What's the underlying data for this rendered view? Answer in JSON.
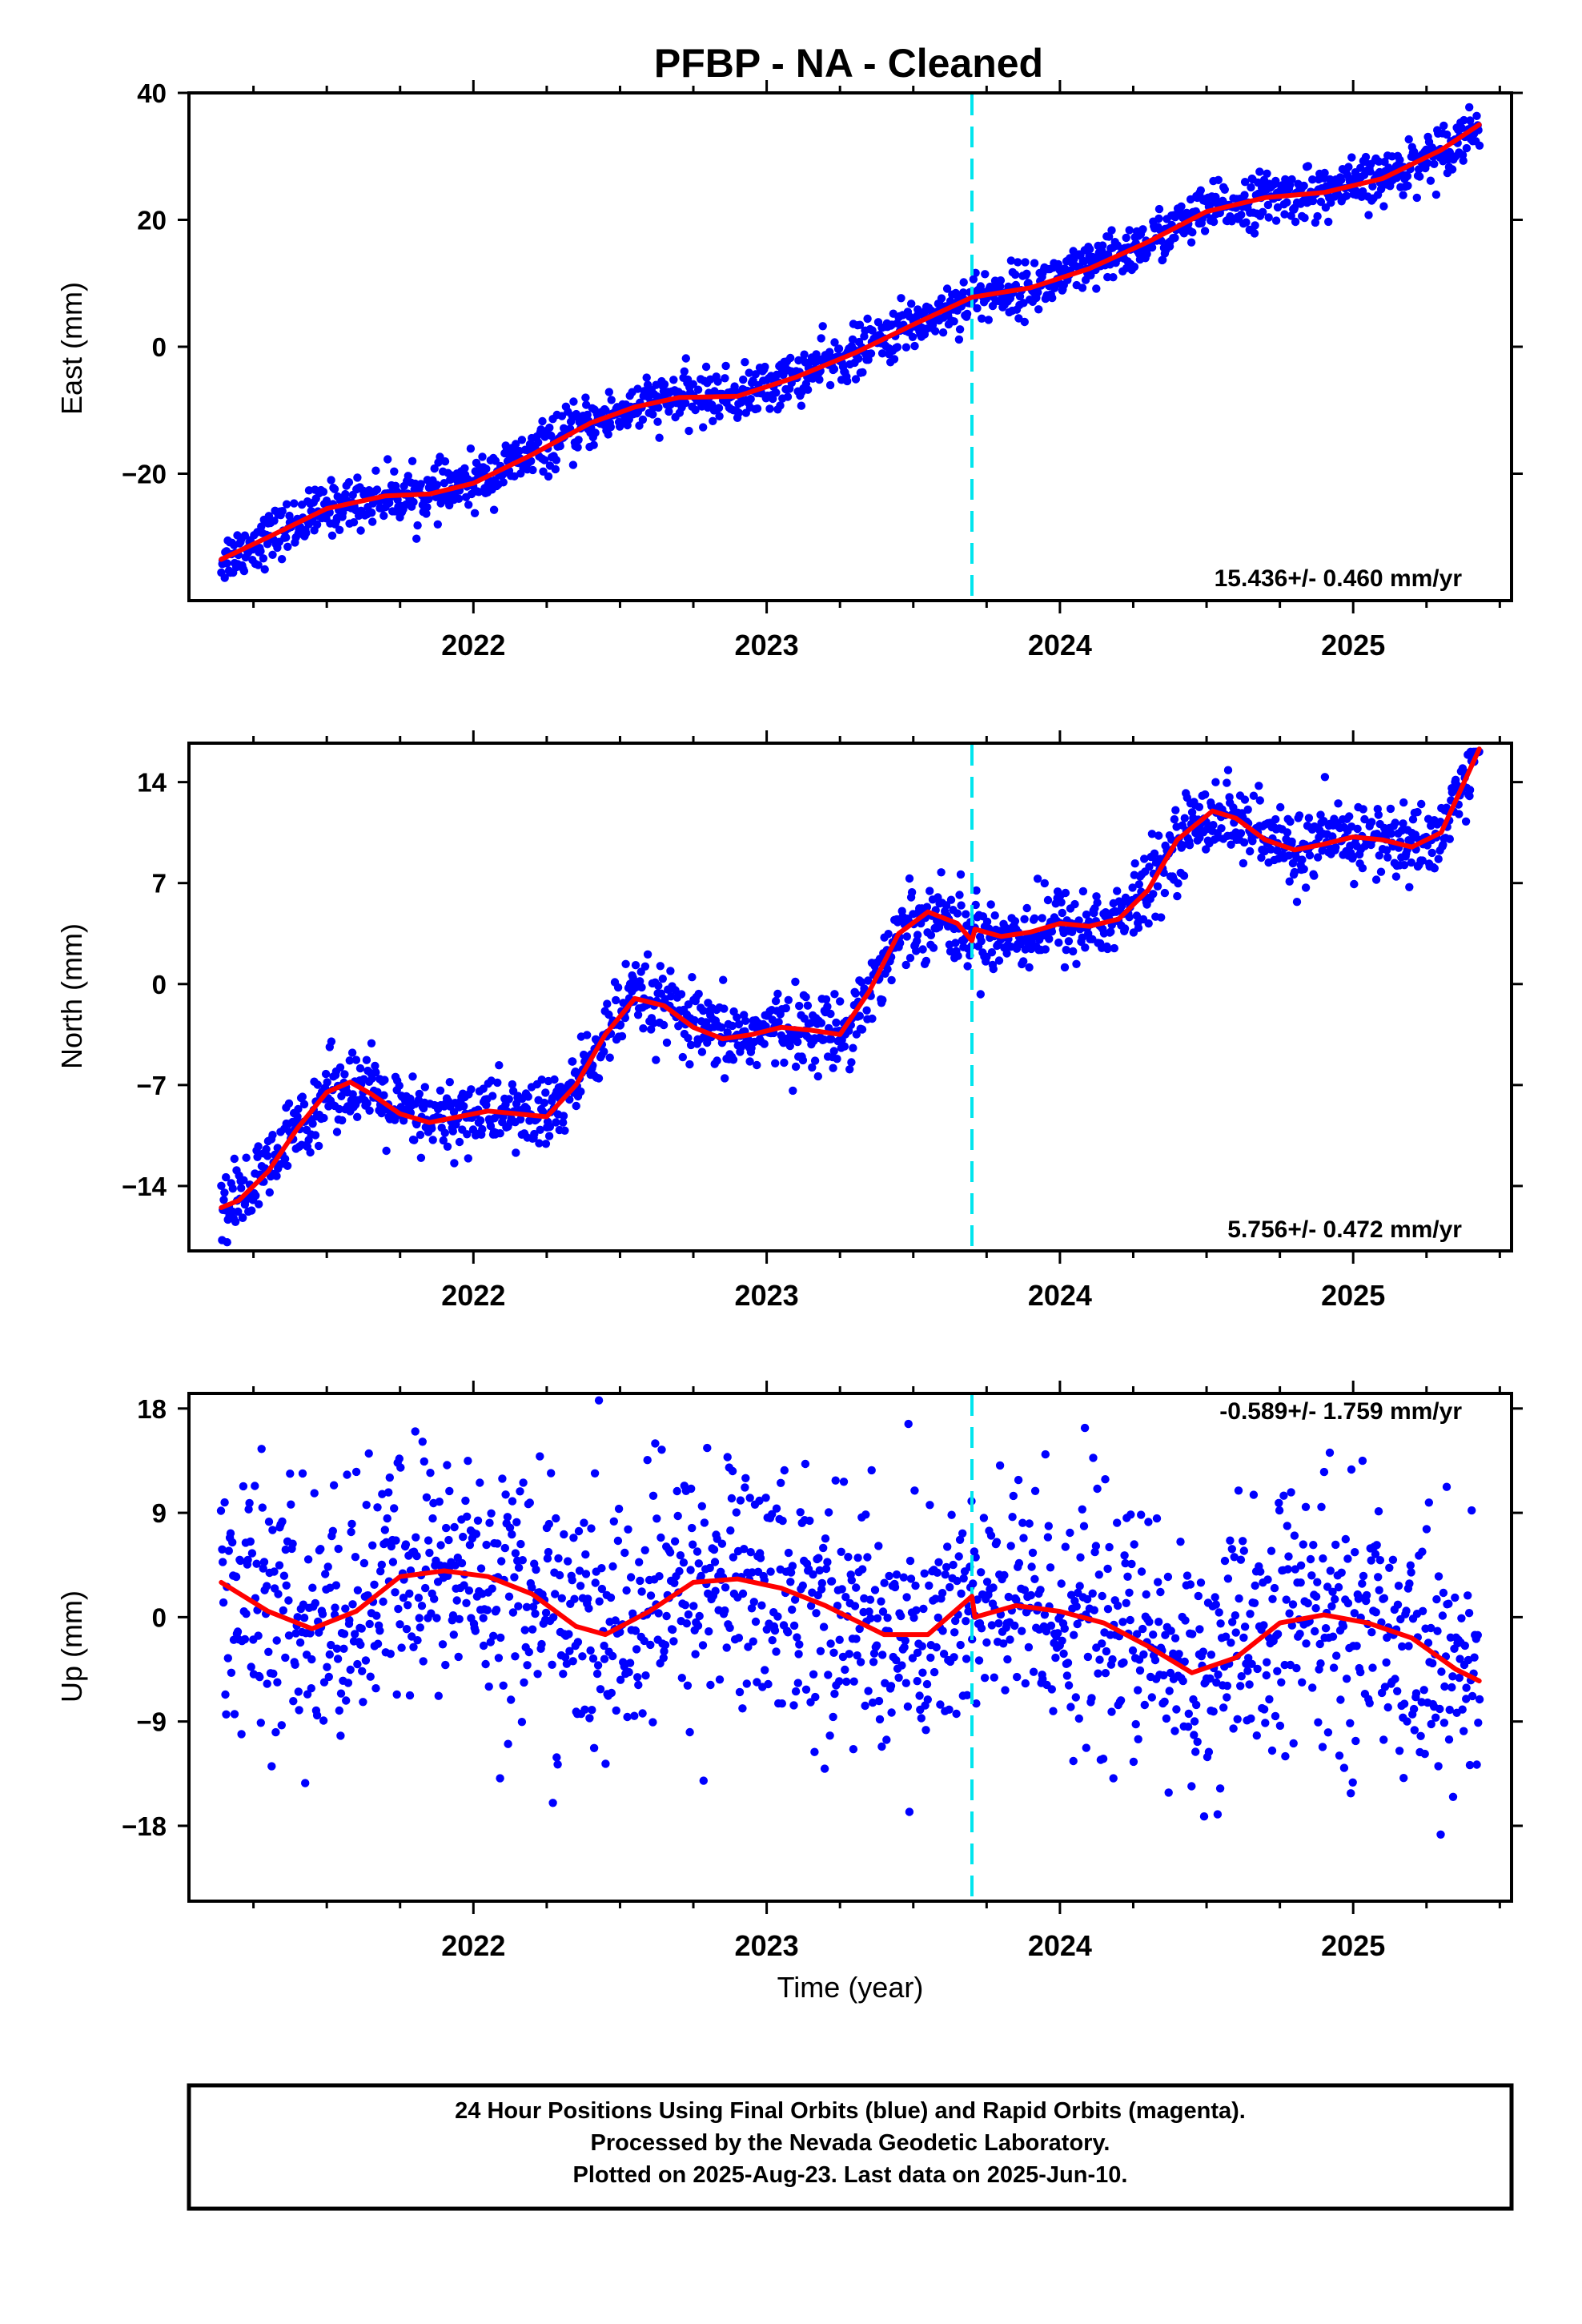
{
  "title": "PFBP  - NA - Cleaned",
  "xlabel": "Time (year)",
  "colors": {
    "final_orbits": "#0000ff",
    "model": "#ff0000",
    "break_line": "#00e5ee",
    "frame": "#000000"
  },
  "footer": [
    "24 Hour Positions Using Final Orbits (blue) and Rapid Orbits (magenta).",
    "Processed by the Nevada Geodetic Laboratory.",
    "Plotted on 2025-Aug-23. Last data on 2025-Jun-10."
  ],
  "chart_data": [
    {
      "type": "scatter",
      "ylabel": "East (mm)",
      "rate": "15.436+/- 0.460 mm/yr",
      "xlim": [
        2021.03,
        2025.54
      ],
      "ylim": [
        -40,
        40
      ],
      "xticks": [
        2022,
        2023,
        2024,
        2025
      ],
      "xtick_labels": [
        "2022",
        "2023",
        "2024",
        "2025"
      ],
      "yticks": [
        -20,
        0,
        20,
        40
      ],
      "ytick_labels": [
        "−20",
        "0",
        "20",
        "40"
      ],
      "break_x": 2023.7,
      "noise": 2.0,
      "model": {
        "x": [
          2021.14,
          2021.3,
          2021.5,
          2021.7,
          2021.85,
          2022.0,
          2022.2,
          2022.4,
          2022.55,
          2022.7,
          2022.9,
          2023.1,
          2023.3,
          2023.5,
          2023.7,
          2023.9,
          2024.1,
          2024.3,
          2024.5,
          2024.7,
          2024.9,
          2025.1,
          2025.3,
          2025.43
        ],
        "y": [
          -33.5,
          -30,
          -25.5,
          -23.5,
          -23.2,
          -21.5,
          -17,
          -12,
          -9.5,
          -8,
          -7.8,
          -4.8,
          -1,
          3.5,
          7.8,
          9.3,
          12.3,
          16.5,
          21.3,
          23.5,
          24.3,
          26.5,
          31,
          35
        ]
      }
    },
    {
      "type": "scatter",
      "ylabel": "North (mm)",
      "rate": "5.756+/- 0.472 mm/yr",
      "xlim": [
        2021.03,
        2025.54
      ],
      "ylim": [
        -18.5,
        16.7
      ],
      "xticks": [
        2022,
        2023,
        2024,
        2025
      ],
      "xtick_labels": [
        "2022",
        "2023",
        "2024",
        "2025"
      ],
      "yticks": [
        -14,
        -7,
        0,
        7,
        14
      ],
      "ytick_labels": [
        "−14",
        "−7",
        "0",
        "7",
        "14"
      ],
      "break_x": 2023.7,
      "noise": 1.3,
      "model": {
        "x": [
          2021.14,
          2021.2,
          2021.3,
          2021.4,
          2021.5,
          2021.58,
          2021.65,
          2021.75,
          2021.85,
          2021.95,
          2022.05,
          2022.15,
          2022.25,
          2022.35,
          2022.45,
          2022.55,
          2022.65,
          2022.75,
          2022.85,
          2022.95,
          2023.05,
          2023.15,
          2023.25,
          2023.35,
          2023.45,
          2023.55,
          2023.65,
          2023.7,
          2023.71,
          2023.8,
          2023.9,
          2024.0,
          2024.1,
          2024.2,
          2024.3,
          2024.4,
          2024.52,
          2024.6,
          2024.7,
          2024.8,
          2024.9,
          2025.0,
          2025.1,
          2025.2,
          2025.3,
          2025.43
        ],
        "y": [
          -15.5,
          -15,
          -13,
          -10,
          -7.5,
          -6.8,
          -7.6,
          -9,
          -9.6,
          -9.2,
          -8.8,
          -9,
          -9.2,
          -7,
          -3.5,
          -1,
          -1.5,
          -3,
          -3.8,
          -3.5,
          -3,
          -3.2,
          -3.5,
          -0.5,
          3.5,
          5,
          4.2,
          3,
          3.8,
          3.3,
          3.6,
          4.2,
          4,
          4.5,
          6.5,
          10,
          12,
          11.5,
          10,
          9.3,
          9.7,
          10.2,
          10,
          9.5,
          10.5,
          16.3
        ]
      }
    },
    {
      "type": "scatter",
      "ylabel": "Up (mm)",
      "rate": "-0.589+/- 1.759 mm/yr",
      "xlim": [
        2021.03,
        2025.54
      ],
      "ylim": [
        -24.5,
        19.3
      ],
      "xticks": [
        2022,
        2023,
        2024,
        2025
      ],
      "xtick_labels": [
        "2022",
        "2023",
        "2024",
        "2025"
      ],
      "yticks": [
        -18,
        -9,
        0,
        9,
        18
      ],
      "ytick_labels": [
        "−18",
        "−9",
        "0",
        "9",
        "18"
      ],
      "break_x": 2023.7,
      "noise": 5.5,
      "model": {
        "x": [
          2021.14,
          2021.3,
          2021.45,
          2021.6,
          2021.75,
          2021.9,
          2022.05,
          2022.2,
          2022.35,
          2022.45,
          2022.6,
          2022.75,
          2022.9,
          2023.05,
          2023.2,
          2023.4,
          2023.55,
          2023.7,
          2023.71,
          2023.85,
          2024.0,
          2024.15,
          2024.3,
          2024.45,
          2024.6,
          2024.75,
          2024.9,
          2025.05,
          2025.2,
          2025.35,
          2025.43
        ],
        "y": [
          3,
          0.5,
          -1,
          0.5,
          3.5,
          4,
          3.5,
          2,
          -0.8,
          -1.5,
          0.5,
          3,
          3.3,
          2.5,
          1,
          -1.5,
          -1.5,
          1.8,
          0,
          1,
          0.5,
          -0.5,
          -2.5,
          -4.8,
          -3.5,
          -0.5,
          0.2,
          -0.5,
          -1.8,
          -4.5,
          -5.5
        ]
      }
    }
  ]
}
